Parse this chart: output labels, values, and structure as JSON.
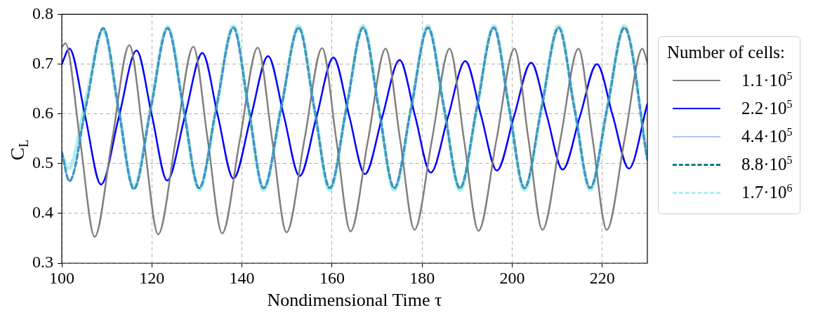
{
  "chart_data": {
    "type": "line",
    "xlabel": "Nondimensional Time τ",
    "ylabel": "C$_{L}$",
    "legend_title": "Number of cells:",
    "xlim": [
      100,
      230
    ],
    "xticks": [
      100,
      120,
      140,
      160,
      180,
      200,
      220
    ],
    "ylim": [
      0.3,
      0.8
    ],
    "yticks": [
      0.3,
      0.4,
      0.5,
      0.6,
      0.7,
      0.8
    ],
    "grid": true,
    "legend": "right",
    "marker": "none",
    "series": [
      {
        "name": "1.1·10$^{5}$",
        "color": "#808080",
        "line_style": "solid",
        "x": [
          100,
          100.8,
          104.05,
          107.3,
          111.15,
          115.0,
          118.2,
          121.4,
          125.3,
          129.2,
          132.4,
          135.6,
          139.5,
          143.5,
          146.7,
          149.9,
          153.85,
          157.8,
          160.95,
          164.1,
          168.0,
          171.9,
          175.1,
          178.3,
          182.2,
          186.1,
          189.3,
          192.5,
          196.5,
          200.5,
          203.6,
          206.7,
          210.7,
          214.7,
          217.85,
          221.0,
          224.95,
          228.9,
          230
        ],
        "values": [
          0.734,
          0.742,
          0.548,
          0.353,
          0.546,
          0.738,
          0.548,
          0.358,
          0.547,
          0.735,
          0.548,
          0.36,
          0.546,
          0.733,
          0.548,
          0.362,
          0.547,
          0.732,
          0.548,
          0.364,
          0.548,
          0.731,
          0.549,
          0.367,
          0.549,
          0.731,
          0.548,
          0.365,
          0.548,
          0.731,
          0.549,
          0.367,
          0.549,
          0.731,
          0.549,
          0.367,
          0.549,
          0.731,
          0.703
        ]
      },
      {
        "name": "2.2·10$^{5}$",
        "color": "#0000ff",
        "line_style": "solid",
        "x": [
          100,
          101.7,
          105.2,
          108.7,
          112.65,
          116.6,
          120.0,
          123.4,
          127.3,
          131.2,
          134.65,
          138.1,
          141.95,
          145.8,
          149.3,
          152.8,
          156.55,
          160.3,
          163.8,
          167.3,
          171.15,
          175.0,
          178.45,
          181.9,
          185.75,
          189.6,
          193.1,
          196.6,
          200.4,
          204.2,
          207.7,
          211.2,
          215.0,
          218.8,
          222.35,
          225.9,
          230
        ],
        "values": [
          0.7,
          0.731,
          0.595,
          0.458,
          0.593,
          0.727,
          0.597,
          0.466,
          0.594,
          0.722,
          0.596,
          0.47,
          0.593,
          0.716,
          0.596,
          0.475,
          0.594,
          0.713,
          0.596,
          0.479,
          0.594,
          0.708,
          0.595,
          0.482,
          0.594,
          0.706,
          0.596,
          0.486,
          0.595,
          0.703,
          0.596,
          0.488,
          0.594,
          0.7,
          0.595,
          0.49,
          0.62
        ]
      },
      {
        "name": "4.4·10$^{5}$",
        "color": "#6495ed",
        "line_style": "solid",
        "x": [
          100,
          101.7,
          105.45,
          109.2,
          112.6,
          116.0,
          119.75,
          123.5,
          127.0,
          130.5,
          134.3,
          138.1,
          141.45,
          144.8,
          148.7,
          152.6,
          156.05,
          159.5,
          163.2,
          166.9,
          170.35,
          173.8,
          177.55,
          181.3,
          184.85,
          188.4,
          192.15,
          195.9,
          199.3,
          202.7,
          206.5,
          210.3,
          213.8,
          217.3,
          221.1,
          224.9,
          230
        ],
        "values": [
          0.523,
          0.465,
          0.618,
          0.772,
          0.61,
          0.449,
          0.61,
          0.772,
          0.611,
          0.451,
          0.612,
          0.773,
          0.612,
          0.451,
          0.612,
          0.773,
          0.612,
          0.451,
          0.612,
          0.773,
          0.612,
          0.451,
          0.612,
          0.773,
          0.612,
          0.451,
          0.612,
          0.773,
          0.612,
          0.451,
          0.612,
          0.773,
          0.612,
          0.451,
          0.612,
          0.773,
          0.508
        ]
      },
      {
        "name": "8.8·10$^{5}$",
        "color": "#008080",
        "line_style": "dashed",
        "x": [
          100,
          101.7,
          105.45,
          109.2,
          112.6,
          116.0,
          119.75,
          123.5,
          127.0,
          130.5,
          134.3,
          138.1,
          141.45,
          144.8,
          148.7,
          152.6,
          156.05,
          159.5,
          163.2,
          166.9,
          170.35,
          173.8,
          177.55,
          181.3,
          184.85,
          188.4,
          192.15,
          195.9,
          199.3,
          202.7,
          206.5,
          210.3,
          213.8,
          217.3,
          221.1,
          224.9,
          230
        ],
        "values": [
          0.523,
          0.465,
          0.618,
          0.772,
          0.61,
          0.449,
          0.61,
          0.772,
          0.611,
          0.451,
          0.612,
          0.773,
          0.612,
          0.451,
          0.612,
          0.773,
          0.612,
          0.451,
          0.612,
          0.773,
          0.612,
          0.451,
          0.612,
          0.773,
          0.612,
          0.451,
          0.612,
          0.773,
          0.612,
          0.451,
          0.612,
          0.773,
          0.612,
          0.451,
          0.612,
          0.773,
          0.508
        ]
      },
      {
        "name": "1.7·10$^{6}$",
        "color": "#aeeeee",
        "line_style": "dashed",
        "x": [
          100,
          101.5,
          105.35,
          109.2,
          112.6,
          116.0,
          119.75,
          123.5,
          127.0,
          130.5,
          134.3,
          138.1,
          141.45,
          144.8,
          148.7,
          152.6,
          156.05,
          159.5,
          163.2,
          166.9,
          170.35,
          173.8,
          177.55,
          181.3,
          184.85,
          188.4,
          192.15,
          195.9,
          199.3,
          202.7,
          206.5,
          210.3,
          213.8,
          217.3,
          221.1,
          224.9,
          230
        ],
        "values": [
          0.52,
          0.49,
          0.629,
          0.768,
          0.61,
          0.452,
          0.614,
          0.775,
          0.612,
          0.448,
          0.612,
          0.777,
          0.612,
          0.447,
          0.612,
          0.777,
          0.612,
          0.447,
          0.612,
          0.777,
          0.612,
          0.447,
          0.612,
          0.777,
          0.612,
          0.447,
          0.612,
          0.777,
          0.612,
          0.447,
          0.612,
          0.777,
          0.612,
          0.447,
          0.612,
          0.777,
          0.51
        ]
      }
    ]
  }
}
